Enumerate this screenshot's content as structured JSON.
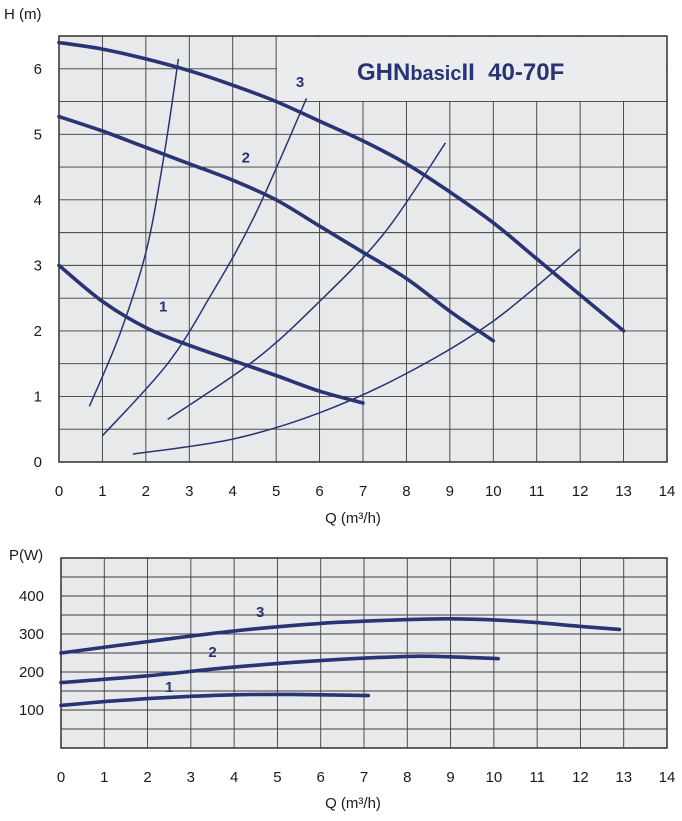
{
  "title": "GHNbasicII 40-70F",
  "title_parts": {
    "brand": "GHN",
    "series": "basic",
    "suffix": "II",
    "model": "40-70F"
  },
  "colors": {
    "curve": "#283473",
    "grid": "#3c3c3c",
    "plot_bg": "#e8e9ea",
    "title_bg": "#ebecee",
    "text": "#1a1a1a"
  },
  "chart_data": [
    {
      "type": "line",
      "ylabel": "H (m)",
      "xlabel": "Q (m³/h)",
      "xlim": [
        0,
        14
      ],
      "ylim": [
        0,
        6.5
      ],
      "x_ticks": [
        0,
        1,
        2,
        3,
        4,
        5,
        6,
        7,
        8,
        9,
        10,
        11,
        12,
        13,
        14
      ],
      "y_ticks": [
        0,
        1,
        2,
        3,
        4,
        5,
        6
      ],
      "grid": true,
      "series": [
        {
          "name": "1",
          "x": [
            0,
            1,
            2,
            3,
            4,
            5,
            6,
            7
          ],
          "y": [
            3.0,
            2.45,
            2.05,
            1.78,
            1.55,
            1.32,
            1.08,
            0.9
          ]
        },
        {
          "name": "2",
          "x": [
            0,
            1,
            2,
            3,
            4,
            5,
            6,
            7,
            8,
            9,
            10
          ],
          "y": [
            5.27,
            5.05,
            4.8,
            4.55,
            4.3,
            4.0,
            3.6,
            3.2,
            2.8,
            2.3,
            1.85
          ]
        },
        {
          "name": "3",
          "x": [
            0,
            1,
            2,
            3,
            4,
            5,
            6,
            7,
            8,
            9,
            10,
            11,
            12,
            13
          ],
          "y": [
            6.4,
            6.3,
            6.15,
            5.97,
            5.75,
            5.5,
            5.2,
            4.9,
            4.55,
            4.12,
            3.65,
            3.1,
            2.55,
            2.0
          ]
        }
      ],
      "system_curves": [
        {
          "x": [
            0.7,
            1.4,
            2.0,
            2.4,
            2.75
          ],
          "y": [
            0.85,
            1.95,
            3.2,
            4.6,
            6.15
          ]
        },
        {
          "x": [
            1.0,
            2.5,
            3.5,
            4.5,
            5.7
          ],
          "y": [
            0.4,
            1.5,
            2.55,
            3.75,
            5.55
          ]
        },
        {
          "x": [
            2.5,
            4.5,
            6.0,
            7.5,
            8.9
          ],
          "y": [
            0.65,
            1.55,
            2.45,
            3.5,
            4.87
          ]
        },
        {
          "x": [
            1.7,
            4.0,
            6.0,
            8.0,
            10.0,
            12.0
          ],
          "y": [
            0.12,
            0.35,
            0.75,
            1.35,
            2.15,
            3.25
          ]
        }
      ]
    },
    {
      "type": "line",
      "ylabel": "P(W)",
      "xlabel": "Q (m³/h)",
      "xlim": [
        0,
        14
      ],
      "ylim": [
        0,
        500
      ],
      "x_ticks": [
        0,
        1,
        2,
        3,
        4,
        5,
        6,
        7,
        8,
        9,
        10,
        11,
        12,
        13,
        14
      ],
      "y_ticks": [
        100,
        200,
        300,
        400
      ],
      "grid": true,
      "series": [
        {
          "name": "1",
          "x": [
            0,
            1,
            2,
            3,
            4,
            5,
            6,
            7.1
          ],
          "y": [
            112,
            122,
            130,
            136,
            140,
            141,
            140,
            138
          ]
        },
        {
          "name": "2",
          "x": [
            0,
            2,
            4,
            6,
            8,
            9,
            10.1
          ],
          "y": [
            172,
            190,
            213,
            230,
            241,
            240,
            235
          ]
        },
        {
          "name": "3",
          "x": [
            0,
            2,
            4,
            6,
            8,
            9,
            10,
            11,
            12,
            12.9
          ],
          "y": [
            250,
            280,
            308,
            328,
            338,
            340,
            337,
            330,
            320,
            312
          ]
        }
      ]
    }
  ]
}
